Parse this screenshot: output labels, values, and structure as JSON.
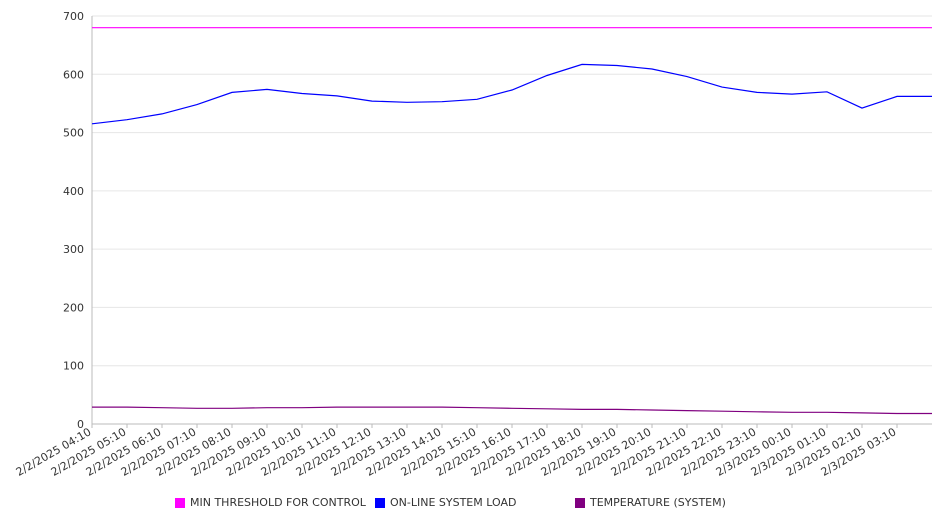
{
  "chart_data": {
    "type": "line",
    "title": "",
    "xlabel": "",
    "ylabel": "",
    "ylim": [
      0,
      700
    ],
    "yticks": [
      0,
      100,
      200,
      300,
      400,
      500,
      600,
      700
    ],
    "grid": true,
    "legend_position": "bottom",
    "xtick_labels": [
      "2/2/2025 04:10",
      "2/2/2025 05:10",
      "2/2/2025 06:10",
      "2/2/2025 07:10",
      "2/2/2025 08:10",
      "2/2/2025 09:10",
      "2/2/2025 10:10",
      "2/2/2025 11:10",
      "2/2/2025 12:10",
      "2/2/2025 13:10",
      "2/2/2025 14:10",
      "2/2/2025 15:10",
      "2/2/2025 16:10",
      "2/2/2025 17:10",
      "2/2/2025 18:10",
      "2/2/2025 19:10",
      "2/2/2025 20:10",
      "2/2/2025 21:10",
      "2/2/2025 22:10",
      "2/2/2025 23:10",
      "2/3/2025 00:10",
      "2/3/2025 01:10",
      "2/3/2025 02:10",
      "2/3/2025 03:10"
    ],
    "series": [
      {
        "name": "MIN THRESHOLD FOR CONTROL",
        "color": "#ff00ff",
        "x": [
          "2/2/2025 04:10",
          "2/3/2025 03:10"
        ],
        "values": [
          680,
          680
        ]
      },
      {
        "name": "ON-LINE SYSTEM LOAD",
        "color": "#0000ff",
        "x": [
          "2/2/2025 04:10",
          "2/2/2025 05:10",
          "2/2/2025 06:10",
          "2/2/2025 07:10",
          "2/2/2025 08:10",
          "2/2/2025 09:10",
          "2/2/2025 10:10",
          "2/2/2025 11:10",
          "2/2/2025 12:10",
          "2/2/2025 13:10",
          "2/2/2025 14:10",
          "2/2/2025 15:10",
          "2/2/2025 16:10",
          "2/2/2025 17:10",
          "2/2/2025 18:10",
          "2/2/2025 19:10",
          "2/2/2025 20:10",
          "2/2/2025 21:10",
          "2/2/2025 22:10",
          "2/2/2025 23:10",
          "2/3/2025 00:10",
          "2/3/2025 01:10",
          "2/3/2025 02:10",
          "2/3/2025 03:10"
        ],
        "values": [
          515,
          522,
          532,
          548,
          569,
          574,
          567,
          563,
          554,
          552,
          553,
          557,
          573,
          598,
          617,
          615,
          609,
          596,
          578,
          569,
          566,
          570,
          542,
          562
        ]
      },
      {
        "name": "TEMPERATURE (SYSTEM)",
        "color": "#800080",
        "x": [
          "2/2/2025 04:10",
          "2/2/2025 05:10",
          "2/2/2025 06:10",
          "2/2/2025 07:10",
          "2/2/2025 08:10",
          "2/2/2025 09:10",
          "2/2/2025 10:10",
          "2/2/2025 11:10",
          "2/2/2025 12:10",
          "2/2/2025 13:10",
          "2/2/2025 14:10",
          "2/2/2025 15:10",
          "2/2/2025 16:10",
          "2/2/2025 17:10",
          "2/2/2025 18:10",
          "2/2/2025 19:10",
          "2/2/2025 20:10",
          "2/2/2025 21:10",
          "2/2/2025 22:10",
          "2/2/2025 23:10",
          "2/3/2025 00:10",
          "2/3/2025 01:10",
          "2/3/2025 02:10",
          "2/3/2025 03:10"
        ],
        "values": [
          29,
          29,
          28,
          27,
          27,
          28,
          28,
          29,
          29,
          29,
          29,
          28,
          27,
          26,
          25,
          25,
          24,
          23,
          22,
          21,
          20,
          20,
          19,
          18
        ]
      }
    ]
  }
}
